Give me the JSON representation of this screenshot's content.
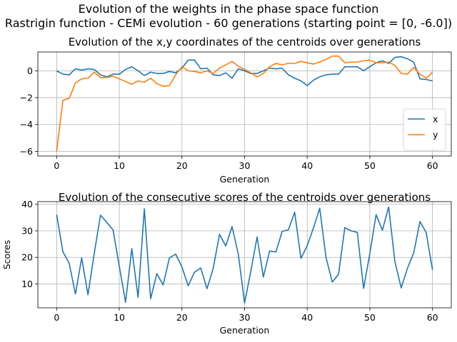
{
  "figure": {
    "title_line1": "Evolution of the weights in the phase space  function",
    "title_line2": "Rastrigin function - CEMi evolution - 60 generations (starting point = [0, -6.0])"
  },
  "chart_data": [
    {
      "type": "line",
      "title": "Evolution of the x,y coordinates of the centroids over generations",
      "xlabel": "Generation",
      "ylabel": "",
      "xlim": [
        -3,
        63
      ],
      "ylim": [
        -6.35,
        1.4
      ],
      "xticks": [
        0,
        10,
        20,
        30,
        40,
        50,
        60
      ],
      "yticks": [
        -6,
        -4,
        -2,
        0
      ],
      "grid": true,
      "legend_position": "lower-right",
      "x": [
        0,
        1,
        2,
        3,
        4,
        5,
        6,
        7,
        8,
        9,
        10,
        11,
        12,
        13,
        14,
        15,
        16,
        17,
        18,
        19,
        20,
        21,
        22,
        23,
        24,
        25,
        26,
        27,
        28,
        29,
        30,
        31,
        32,
        33,
        34,
        35,
        36,
        37,
        38,
        39,
        40,
        41,
        42,
        43,
        44,
        45,
        46,
        47,
        48,
        49,
        50,
        51,
        52,
        53,
        54,
        55,
        56,
        57,
        58,
        59,
        60
      ],
      "series": [
        {
          "name": "x",
          "color": "#1f77b4",
          "values": [
            0.0,
            -0.25,
            -0.3,
            0.15,
            0.05,
            0.15,
            0.1,
            -0.3,
            -0.45,
            -0.25,
            -0.25,
            0.1,
            0.3,
            0.0,
            -0.35,
            -0.1,
            -0.2,
            -0.2,
            -0.05,
            -0.15,
            0.2,
            0.8,
            0.8,
            0.15,
            0.2,
            -0.3,
            -0.35,
            -0.15,
            -0.55,
            0.15,
            0.0,
            -0.2,
            -0.2,
            0.0,
            0.2,
            0.15,
            0.2,
            -0.3,
            -0.55,
            -0.75,
            -1.1,
            -0.7,
            -0.45,
            -0.3,
            -0.25,
            -0.25,
            0.3,
            0.3,
            0.3,
            0.0,
            0.3,
            0.6,
            0.75,
            0.55,
            1.0,
            1.05,
            0.9,
            0.65,
            -0.6,
            -0.65,
            -0.75
          ]
        },
        {
          "name": "y",
          "color": "#ff7f0e",
          "values": [
            -6.0,
            -2.2,
            -2.05,
            -0.9,
            -0.6,
            -0.55,
            -0.1,
            -0.5,
            -0.5,
            -0.4,
            -0.6,
            -0.8,
            -1.0,
            -0.75,
            -0.85,
            -0.55,
            -0.95,
            -1.15,
            -1.1,
            -0.3,
            0.3,
            0.0,
            -0.05,
            -0.15,
            0.0,
            -0.2,
            0.2,
            0.45,
            0.7,
            0.35,
            0.1,
            -0.15,
            -0.45,
            -0.2,
            0.3,
            0.55,
            0.45,
            0.55,
            0.55,
            0.7,
            0.6,
            0.5,
            0.65,
            0.85,
            1.1,
            1.1,
            0.6,
            0.65,
            0.65,
            0.75,
            0.8,
            0.6,
            0.6,
            0.65,
            0.4,
            -0.2,
            -0.25,
            0.25,
            -0.25,
            -0.55,
            -0.1
          ]
        }
      ]
    },
    {
      "type": "line",
      "title": "Evolution of the consecutive scores of the centroids over generations",
      "xlabel": "Generation",
      "ylabel": "Scores",
      "xlim": [
        -3,
        63
      ],
      "ylim": [
        1,
        41
      ],
      "xticks": [
        0,
        10,
        20,
        30,
        40,
        50,
        60
      ],
      "yticks": [
        10,
        20,
        30,
        40
      ],
      "grid": true,
      "x": [
        0,
        1,
        2,
        3,
        4,
        5,
        6,
        7,
        8,
        9,
        10,
        11,
        12,
        13,
        14,
        15,
        16,
        17,
        18,
        19,
        20,
        21,
        22,
        23,
        24,
        25,
        26,
        27,
        28,
        29,
        30,
        31,
        32,
        33,
        34,
        35,
        36,
        37,
        38,
        39,
        40,
        41,
        42,
        43,
        44,
        45,
        46,
        47,
        48,
        49,
        50,
        51,
        52,
        53,
        54,
        55,
        56,
        57,
        58,
        59,
        60
      ],
      "series": [
        {
          "name": "",
          "color": "#1f77b4",
          "values": [
            36.1,
            22.1,
            17.8,
            6.2,
            19.8,
            5.9,
            21.4,
            35.9,
            33.2,
            30.4,
            16.7,
            3.1,
            23.3,
            4.9,
            38.3,
            4.4,
            13.9,
            9.6,
            19.8,
            21.2,
            16.4,
            9.3,
            14.4,
            16.0,
            8.2,
            15.9,
            28.7,
            24.3,
            31.6,
            21.2,
            2.8,
            14.8,
            27.7,
            12.6,
            22.4,
            22.0,
            29.8,
            30.4,
            37.0,
            19.6,
            24.4,
            31.1,
            38.5,
            20.0,
            10.7,
            13.6,
            31.2,
            30.0,
            29.4,
            8.3,
            21.5,
            36.1,
            30.2,
            39.0,
            18.4,
            8.5,
            15.9,
            21.7,
            33.5,
            29.3,
            15.3
          ]
        }
      ]
    }
  ]
}
